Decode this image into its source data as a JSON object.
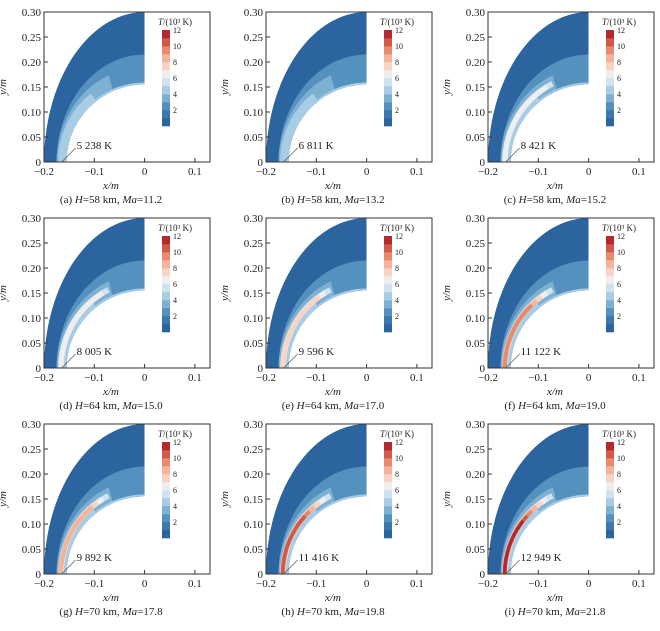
{
  "chart_data": {
    "type": "heatmap",
    "description": "Temperature contour fields around a blunt body nose for nine flight conditions",
    "xlabel": "x/m",
    "ylabel": "y/m",
    "xlim": [
      -0.2,
      0.13
    ],
    "ylim": [
      0,
      0.3
    ],
    "xticks": [
      -0.2,
      -0.1,
      0,
      0.1
    ],
    "xtick_labels": [
      "−0.2",
      "−0.1",
      "0",
      "0.1"
    ],
    "yticks": [
      0,
      0.05,
      0.1,
      0.15,
      0.2,
      0.25,
      0.3
    ],
    "ytick_labels": [
      "0",
      "0.05",
      "0.10",
      "0.15",
      "0.20",
      "0.25",
      "0.30"
    ],
    "colorbar": {
      "title_var": "T",
      "title_unit": "/(10³ K)",
      "ticks": [
        "2",
        "4",
        "6",
        "8",
        "10",
        "12"
      ],
      "levels": [
        0,
        1,
        2,
        3,
        4,
        5,
        6,
        7,
        8,
        9,
        10,
        11,
        12
      ],
      "colors": [
        "#2c64a0",
        "#3a77ad",
        "#5591bf",
        "#7eb0d2",
        "#a8cce3",
        "#cfe2ef",
        "#eeeeee",
        "#f8d4c4",
        "#f4b39a",
        "#e88b6d",
        "#d05b4a",
        "#b22a30"
      ]
    },
    "panels": [
      {
        "id": "a",
        "caption_prefix": "(a) ",
        "H_value": "58 km",
        "Ma_value": "11.2",
        "max_temp_label": "5 238 K",
        "max_temp_K": 5238
      },
      {
        "id": "b",
        "caption_prefix": "(b) ",
        "H_value": "58 km",
        "Ma_value": "13.2",
        "max_temp_label": "6 811 K",
        "max_temp_K": 6811
      },
      {
        "id": "c",
        "caption_prefix": "(c) ",
        "H_value": "58 km",
        "Ma_value": "15.2",
        "max_temp_label": "8 421 K",
        "max_temp_K": 8421
      },
      {
        "id": "d",
        "caption_prefix": "(d) ",
        "H_value": "64 km",
        "Ma_value": "15.0",
        "max_temp_label": "8 005 K",
        "max_temp_K": 8005
      },
      {
        "id": "e",
        "caption_prefix": "(e) ",
        "H_value": "64 km",
        "Ma_value": "17.0",
        "max_temp_label": "9 596 K",
        "max_temp_K": 9596
      },
      {
        "id": "f",
        "caption_prefix": "(f) ",
        "H_value": "64 km",
        "Ma_value": "19.0",
        "max_temp_label": "11 122 K",
        "max_temp_K": 11122
      },
      {
        "id": "g",
        "caption_prefix": "(g) ",
        "H_value": "70 km",
        "Ma_value": "17.8",
        "max_temp_label": "9 892 K",
        "max_temp_K": 9892
      },
      {
        "id": "h",
        "caption_prefix": "(h) ",
        "H_value": "70 km",
        "Ma_value": "19.8",
        "max_temp_label": "11 416 K",
        "max_temp_K": 11416
      },
      {
        "id": "i",
        "caption_prefix": "(i) ",
        "H_value": "70 km",
        "Ma_value": "21.8",
        "max_temp_label": "12 949 K",
        "max_temp_K": 12949
      }
    ],
    "caption_H_var": "H",
    "caption_Ma_var": "Ma",
    "caption_eq": "="
  }
}
